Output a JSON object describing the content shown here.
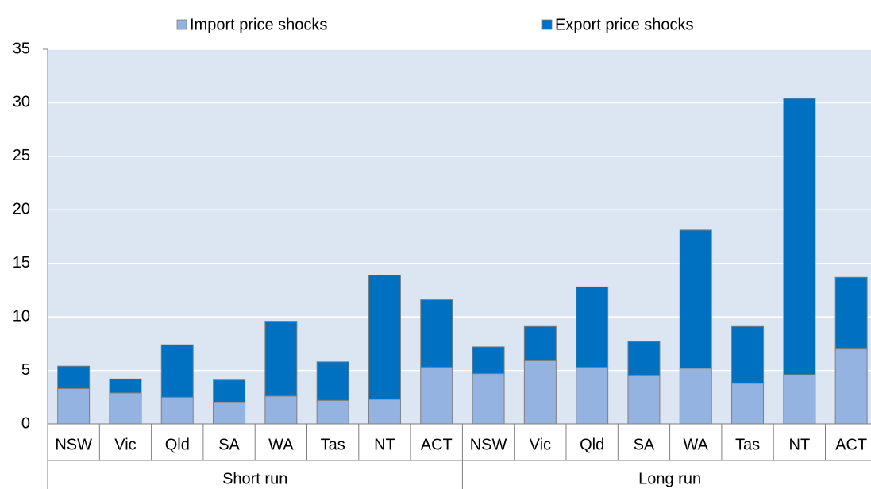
{
  "chart_data": {
    "type": "stacked_bar",
    "groups": [
      {
        "name": "Short run",
        "categories": [
          "NSW",
          "Vic",
          "Qld",
          "SA",
          "WA",
          "Tas",
          "NT",
          "ACT"
        ]
      },
      {
        "name": "Long run",
        "categories": [
          "NSW",
          "Vic",
          "Qld",
          "SA",
          "WA",
          "Tas",
          "NT",
          "ACT"
        ]
      }
    ],
    "series": [
      {
        "name": "Import price shocks",
        "color": "#95b3e0",
        "values": [
          3.3,
          2.9,
          2.5,
          2.0,
          2.6,
          2.2,
          2.3,
          5.3,
          4.7,
          5.9,
          5.3,
          4.5,
          5.2,
          3.8,
          4.6,
          7.0
        ]
      },
      {
        "name": "Export price shocks",
        "color": "#0070c0",
        "values": [
          2.1,
          1.3,
          4.9,
          2.1,
          7.0,
          3.6,
          11.6,
          6.3,
          2.5,
          3.2,
          7.5,
          3.2,
          12.9,
          5.3,
          25.8,
          6.7
        ]
      }
    ],
    "ylim": [
      0,
      35
    ],
    "yticks": [
      0,
      5,
      10,
      15,
      20,
      25,
      30,
      35
    ],
    "grid": true,
    "legend": "top"
  }
}
